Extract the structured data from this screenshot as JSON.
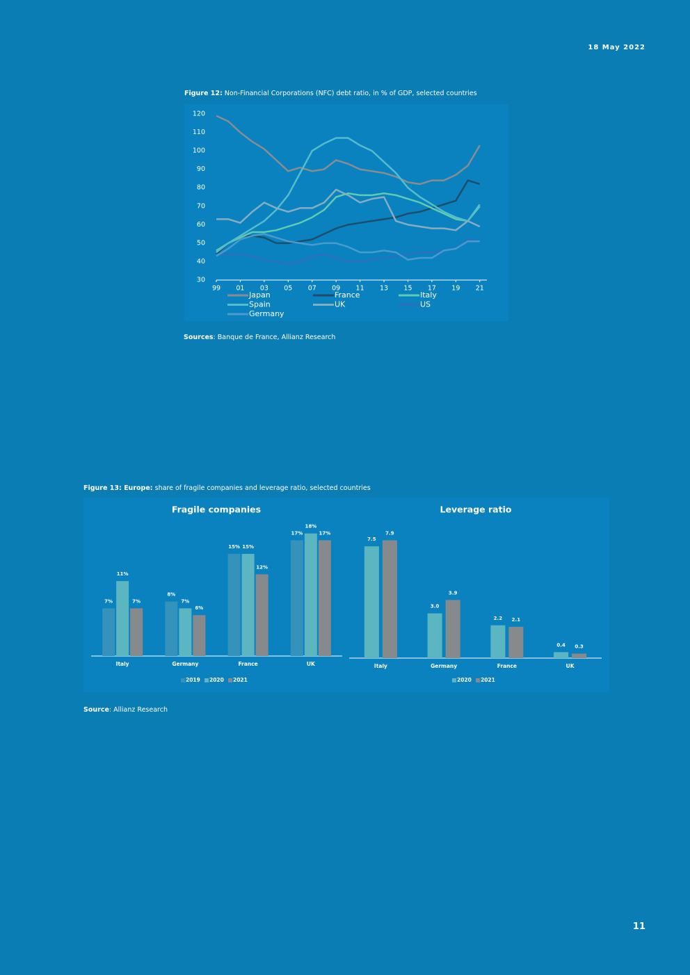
{
  "date": "18 May 2022",
  "page_number": "11",
  "captions": [
    {
      "label": "Figure 12:",
      "text": "Non-Financial Corporations (NFC) debt ratio, in % of GDP, selected countries"
    },
    {
      "label": "Figure 13: Europe:",
      "text": "share of fragile companies and leverage ratio, selected countries"
    }
  ],
  "sources": [
    {
      "label": "Sources",
      "text": ": Banque de France, Allianz Research"
    },
    {
      "label": "Source",
      "text": ": Allianz Research"
    }
  ],
  "chart_data": [
    {
      "type": "line",
      "x": [
        1999,
        2000,
        2001,
        2002,
        2003,
        2004,
        2005,
        2006,
        2007,
        2008,
        2009,
        2010,
        2011,
        2012,
        2013,
        2014,
        2015,
        2016,
        2017,
        2018,
        2019,
        2020,
        2021
      ],
      "xlim": [
        1999,
        2022
      ],
      "xticks": [
        {
          "value": 1999,
          "label": "99"
        },
        {
          "value": 2001,
          "label": "01"
        },
        {
          "value": 2003,
          "label": "03"
        },
        {
          "value": 2005,
          "label": "05"
        },
        {
          "value": 2007,
          "label": "07"
        },
        {
          "value": 2009,
          "label": "09"
        },
        {
          "value": 2011,
          "label": "11"
        },
        {
          "value": 2013,
          "label": "13"
        },
        {
          "value": 2015,
          "label": "15"
        },
        {
          "value": 2017,
          "label": "17"
        },
        {
          "value": 2019,
          "label": "19"
        },
        {
          "value": 2021,
          "label": "21"
        }
      ],
      "ylim": [
        30,
        120
      ],
      "yticks": [
        30,
        40,
        50,
        60,
        70,
        80,
        90,
        100,
        110,
        120
      ],
      "series": [
        {
          "name": "Japan",
          "color": "#8a8d90",
          "values": [
            119,
            116,
            110,
            105,
            101,
            95,
            89,
            91,
            89,
            90,
            95,
            93,
            90,
            89,
            88,
            86,
            83,
            82,
            84,
            84,
            87,
            92,
            103
          ]
        },
        {
          "name": "France",
          "color": "#1d4e6a",
          "values": [
            44,
            50,
            54,
            54,
            53,
            50,
            50,
            51,
            52,
            55,
            58,
            60,
            61,
            62,
            63,
            64,
            66,
            67,
            69,
            71,
            73,
            84,
            82
          ]
        },
        {
          "name": "Italy",
          "color": "#5fcbb0",
          "values": [
            46,
            50,
            53,
            56,
            56,
            57,
            59,
            61,
            64,
            68,
            75,
            77,
            76,
            76,
            77,
            76,
            74,
            72,
            69,
            66,
            63,
            62,
            70
          ]
        },
        {
          "name": "Spain",
          "color": "#55bccb",
          "values": [
            45,
            50,
            54,
            58,
            62,
            68,
            76,
            88,
            100,
            104,
            107,
            107,
            103,
            100,
            94,
            88,
            80,
            75,
            71,
            67,
            64,
            62,
            71
          ]
        },
        {
          "name": "UK",
          "color": "#86adc0",
          "values": [
            63,
            63,
            61,
            67,
            72,
            69,
            67,
            69,
            69,
            72,
            79,
            76,
            72,
            74,
            75,
            62,
            60,
            59,
            58,
            58,
            57,
            62,
            59
          ]
        },
        {
          "name": "US",
          "color": "#2e6ec0",
          "values": [
            44,
            44,
            44,
            43,
            41,
            40,
            39,
            40,
            43,
            44,
            42,
            40,
            40,
            41,
            42,
            43,
            44,
            45,
            45,
            46,
            47,
            52,
            51
          ]
        },
        {
          "name": "Germany",
          "color": "#4a9bcc",
          "values": [
            43,
            47,
            52,
            54,
            55,
            53,
            51,
            50,
            49,
            50,
            50,
            48,
            45,
            45,
            46,
            45,
            41,
            42,
            42,
            46,
            47,
            51,
            51
          ]
        }
      ]
    },
    {
      "type": "bar",
      "title": "Fragile companies",
      "categories": [
        "Italy",
        "Germany",
        "France",
        "UK"
      ],
      "ylim": [
        0,
        20
      ],
      "series": [
        {
          "name": "2019",
          "color": "#3592bb",
          "values": [
            7,
            8,
            15,
            17
          ],
          "value_labels": [
            "7%",
            "8%",
            "15%",
            "17%"
          ]
        },
        {
          "name": "2020",
          "color": "#5bb6c2",
          "values": [
            11,
            7,
            15,
            18
          ],
          "value_labels": [
            "11%",
            "7%",
            "15%",
            "18%"
          ]
        },
        {
          "name": "2021",
          "color": "#878a8c",
          "values": [
            7,
            6,
            12,
            17
          ],
          "value_labels": [
            "7%",
            "6%",
            "12%",
            "17%"
          ]
        }
      ]
    },
    {
      "type": "bar",
      "title": "Leverage ratio",
      "categories": [
        "Italy",
        "Germany",
        "France",
        "UK"
      ],
      "ylim": [
        0,
        9
      ],
      "series": [
        {
          "name": "2020",
          "color": "#5bb6c2",
          "values": [
            7.5,
            3,
            2.2,
            0.4
          ],
          "value_labels": [
            "7.5",
            "3.0",
            "2.2",
            "0.4"
          ]
        },
        {
          "name": "2021",
          "color": "#878a8c",
          "values": [
            7.9,
            3.9,
            2.1,
            0.3
          ],
          "value_labels": [
            "7.9",
            "3.9",
            "2.1",
            "0.3"
          ]
        }
      ]
    }
  ]
}
